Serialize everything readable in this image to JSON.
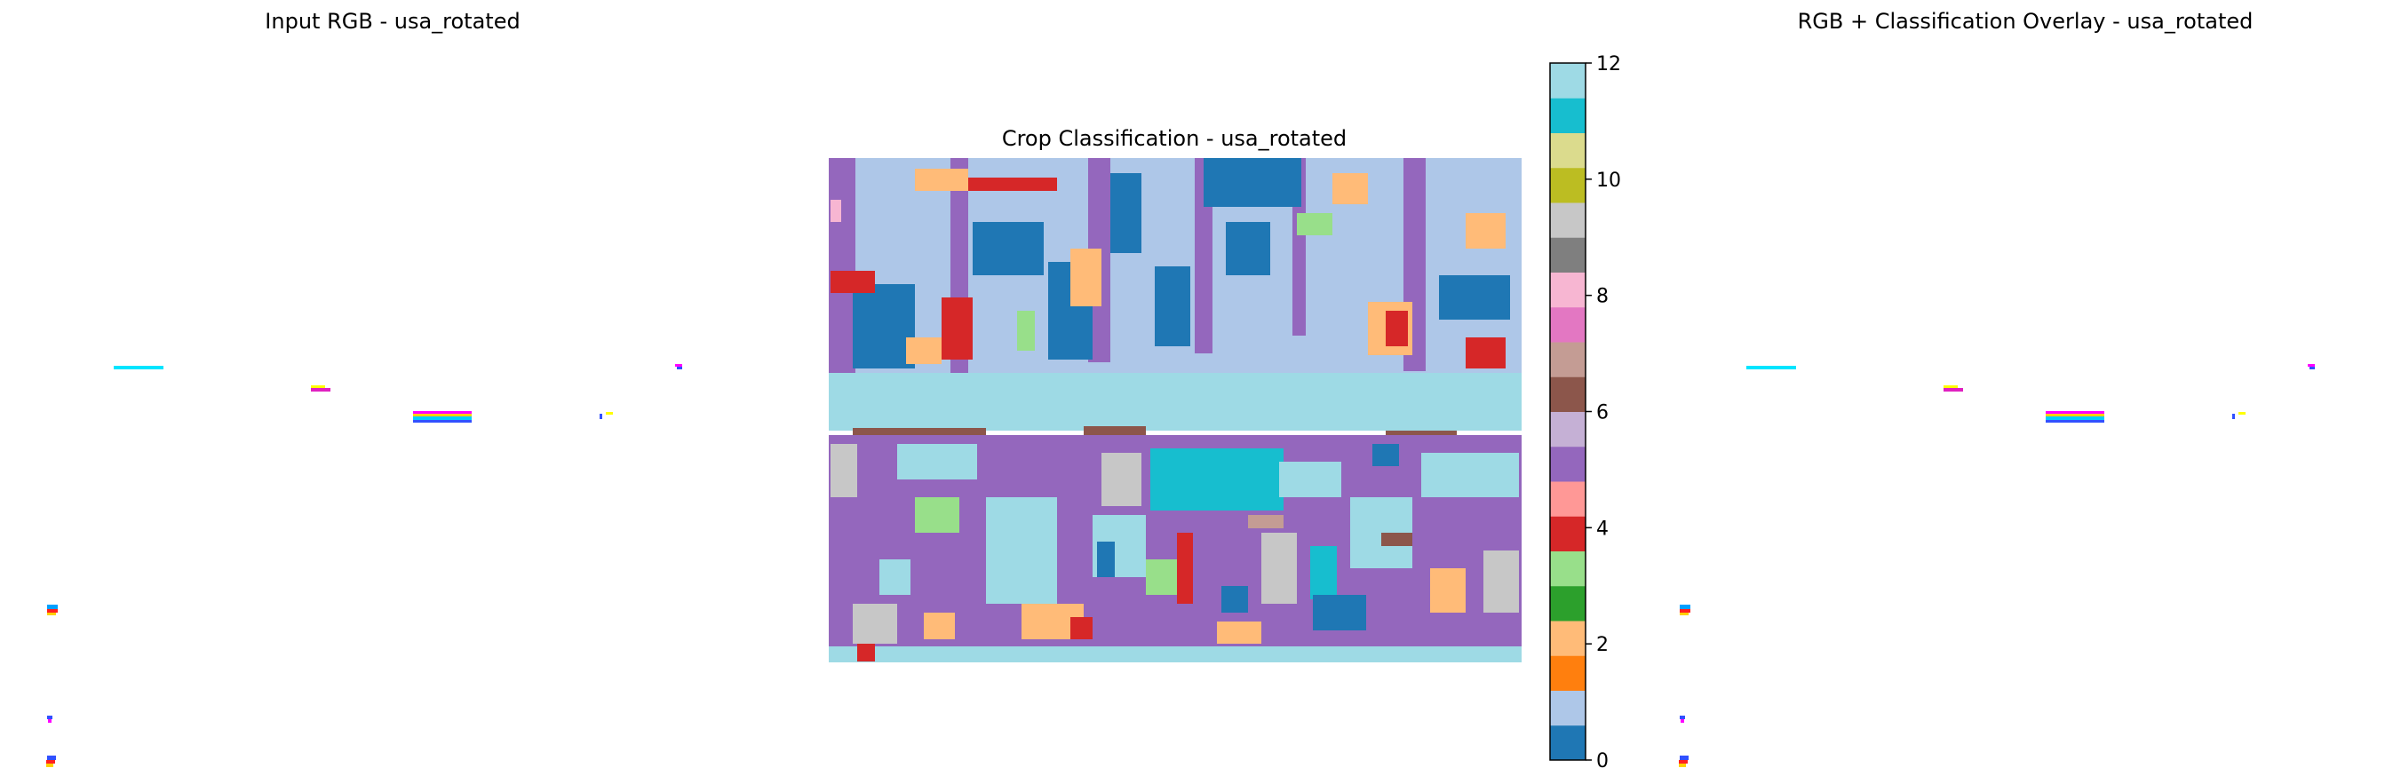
{
  "panels": {
    "input": {
      "title": "Input RGB - usa_rotated"
    },
    "classification": {
      "title": "Crop Classification - usa_rotated"
    },
    "overlay": {
      "title": "RGB + Classification Overlay - usa_rotated"
    }
  },
  "chart_data": [
    {
      "type": "image",
      "title": "Input RGB - usa_rotated",
      "description_marks": "mostly white image with small scattered colored pixel clusters (cyan, magenta, yellow, blue, red)"
    },
    {
      "type": "heatmap",
      "title": "Crop Classification - usa_rotated",
      "colormap": "tab20",
      "vmin": 0,
      "vmax": 12,
      "colorbar": {
        "ticks": [
          0,
          2,
          4,
          6,
          8,
          10,
          12
        ],
        "tick_labels": [
          "0",
          "2",
          "4",
          "6",
          "8",
          "10",
          "12"
        ],
        "colors": [
          "#1f77b4",
          "#aec7e8",
          "#ff7f0e",
          "#ffbb78",
          "#2ca02c",
          "#98df8a",
          "#d62728",
          "#ff9896",
          "#9467bd",
          "#c5b0d5",
          "#8c564b",
          "#c49c94",
          "#e377c2",
          "#f7b6d2",
          "#7f7f7f",
          "#c7c7c7",
          "#bcbd22",
          "#dbdb8d",
          "#17becf",
          "#9edae5"
        ]
      },
      "dominant_classes": {
        "upper_half": [
          "light blue (1)",
          "blue (0)",
          "purple (4.5)",
          "orange (1.5)",
          "red (3.5)"
        ],
        "middle_band": [
          "pale cyan (12)"
        ],
        "lower_half": [
          "purple (4.5)",
          "pale cyan (12)",
          "orange (1.5)",
          "grey (9)",
          "cyan (11.5)"
        ]
      }
    },
    {
      "type": "image",
      "title": "RGB + Classification Overlay - usa_rotated",
      "description_marks": "mostly white image with small scattered colored pixel clusters (same as input)"
    }
  ]
}
